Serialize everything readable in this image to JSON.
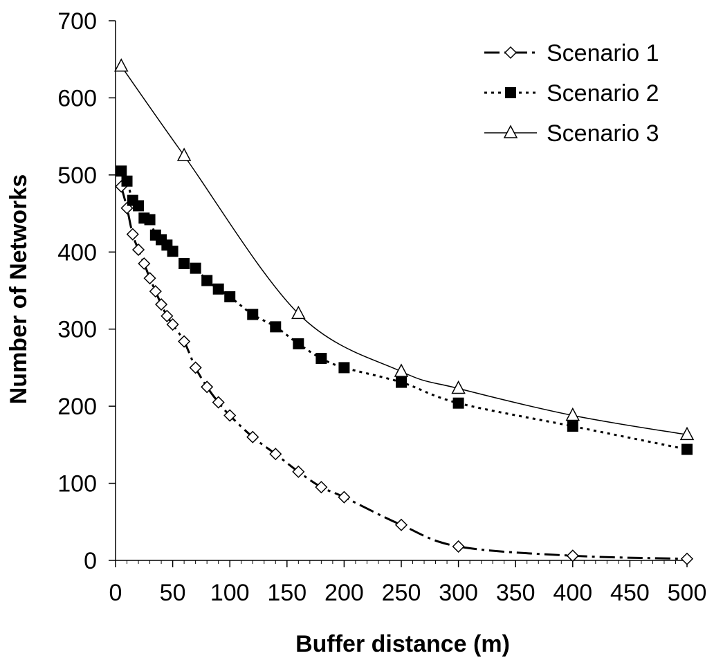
{
  "chart_data": {
    "type": "line",
    "title": "",
    "xlabel": "Buffer distance (m)",
    "ylabel": "Number of Networks",
    "xlim": [
      0,
      500
    ],
    "ylim": [
      0,
      700
    ],
    "x_ticks": [
      "0",
      "50",
      "100",
      "150",
      "200",
      "250",
      "300",
      "350",
      "400",
      "450",
      "500"
    ],
    "y_ticks": [
      "0",
      "100",
      "200",
      "300",
      "400",
      "500",
      "600",
      "700"
    ],
    "grid": false,
    "legend_position": "top-right",
    "series": [
      {
        "name": "Scenario 1",
        "marker": "diamond-open",
        "line": "dash-dot",
        "points": [
          [
            5,
            485
          ],
          [
            10,
            457
          ],
          [
            15,
            423
          ],
          [
            20,
            403
          ],
          [
            25,
            385
          ],
          [
            30,
            366
          ],
          [
            35,
            349
          ],
          [
            40,
            332
          ],
          [
            45,
            317
          ],
          [
            50,
            306
          ],
          [
            60,
            284
          ],
          [
            70,
            250
          ],
          [
            80,
            225
          ],
          [
            90,
            205
          ],
          [
            100,
            188
          ],
          [
            120,
            160
          ],
          [
            140,
            138
          ],
          [
            160,
            115
          ],
          [
            180,
            95
          ],
          [
            200,
            82
          ],
          [
            250,
            46
          ],
          [
            300,
            18
          ],
          [
            400,
            6
          ],
          [
            500,
            2
          ]
        ]
      },
      {
        "name": "Scenario 2",
        "marker": "square-filled",
        "line": "dotted",
        "points": [
          [
            5,
            505
          ],
          [
            10,
            492
          ],
          [
            15,
            467
          ],
          [
            20,
            460
          ],
          [
            25,
            444
          ],
          [
            30,
            442
          ],
          [
            35,
            422
          ],
          [
            40,
            416
          ],
          [
            45,
            409
          ],
          [
            50,
            401
          ],
          [
            60,
            385
          ],
          [
            70,
            379
          ],
          [
            80,
            363
          ],
          [
            90,
            352
          ],
          [
            100,
            342
          ],
          [
            120,
            319
          ],
          [
            140,
            303
          ],
          [
            160,
            281
          ],
          [
            180,
            262
          ],
          [
            200,
            250
          ],
          [
            250,
            231
          ],
          [
            300,
            204
          ],
          [
            400,
            174
          ],
          [
            500,
            144
          ]
        ]
      },
      {
        "name": "Scenario 3",
        "marker": "triangle-open",
        "line": "solid",
        "points": [
          [
            5,
            641
          ],
          [
            60,
            525
          ],
          [
            160,
            320
          ],
          [
            250,
            245
          ],
          [
            300,
            223
          ],
          [
            400,
            188
          ],
          [
            500,
            163
          ]
        ]
      }
    ]
  }
}
